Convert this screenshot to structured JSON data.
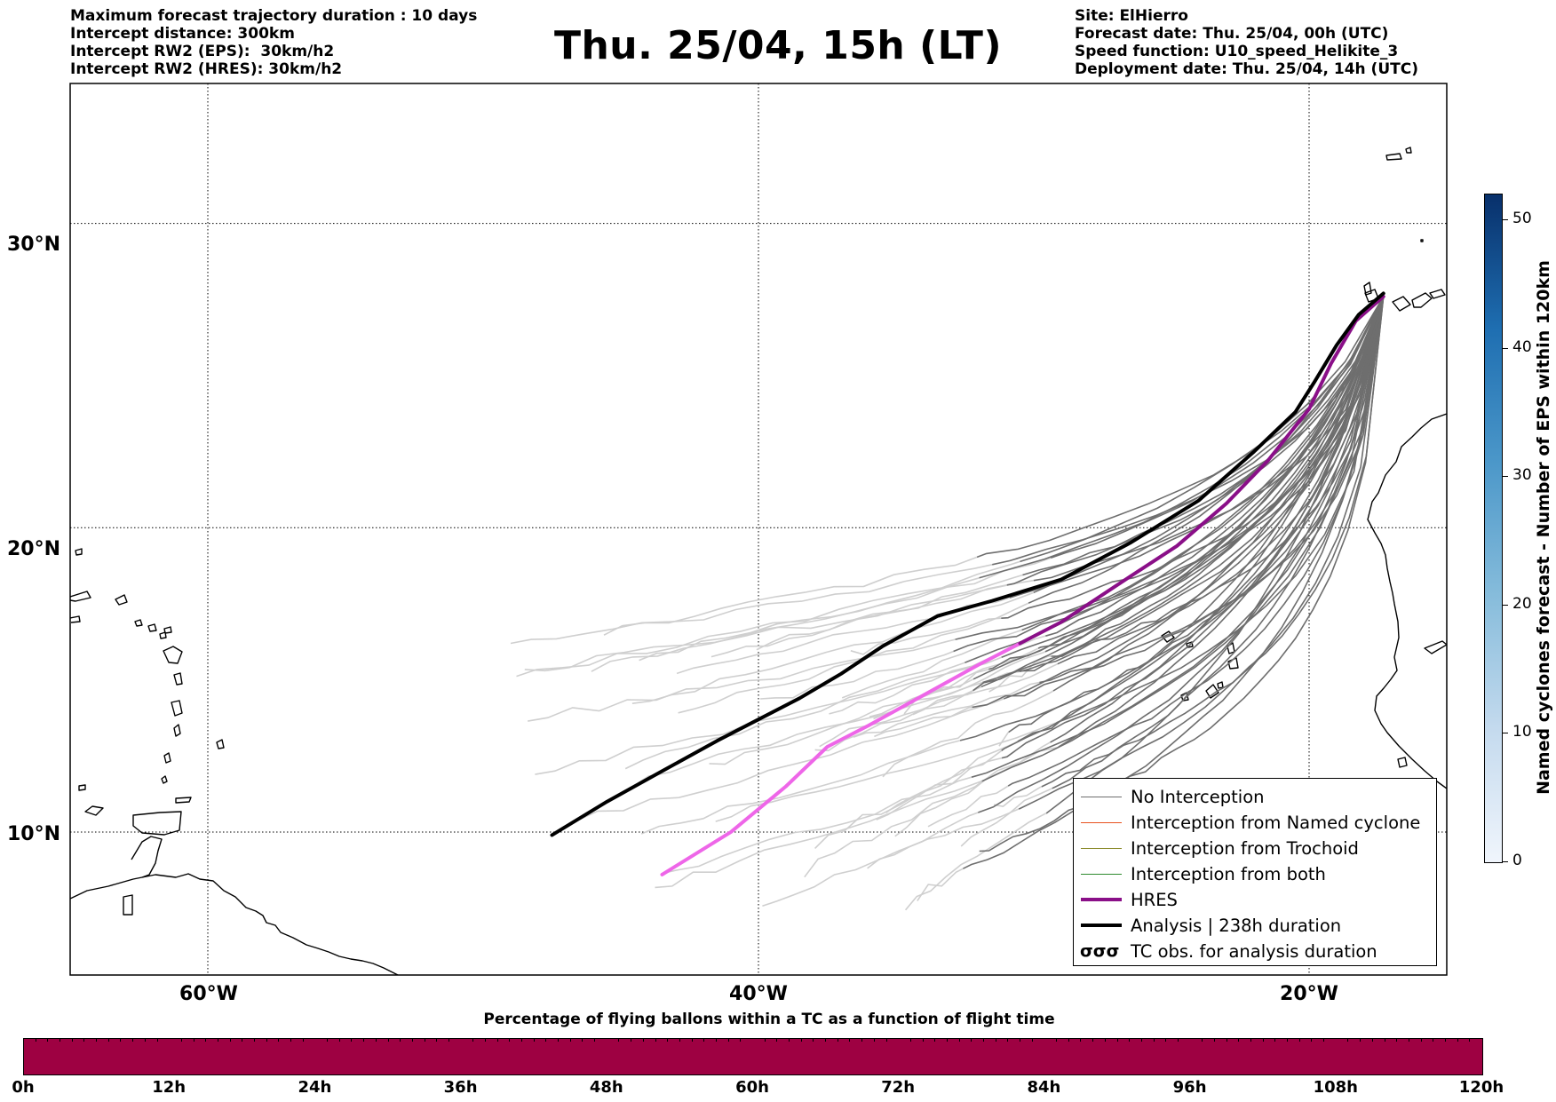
{
  "header": {
    "left_lines": [
      "Maximum forecast trajectory duration : 10 days",
      "Intercept distance: 300km",
      "Intercept RW2 (EPS):  30km/h2",
      "Intercept RW2 (HRES): 30km/h2"
    ],
    "title": "Thu. 25/04, 15h (LT)",
    "right_lines": [
      "Site: ElHierro",
      "Forecast date: Thu. 25/04, 00h (UTC)",
      "Speed function: U10_speed_Helikite_3",
      "Deployment date: Thu. 25/04, 14h (UTC)"
    ]
  },
  "map": {
    "lon_range": [
      -65,
      -15
    ],
    "lat_range": [
      5.3,
      34.6
    ],
    "lat_labels": [
      "30°N",
      "20°N",
      "10°N"
    ],
    "lat_values": [
      30,
      20,
      10
    ],
    "lon_labels": [
      "60°W",
      "40°W",
      "20°W"
    ],
    "lon_values": [
      -60,
      -40,
      -20
    ],
    "colors": {
      "eps_far": "#cfcfcf",
      "eps_near": "#6e6e6e",
      "hres_near": "#8a0f88",
      "hres_far": "#ee66e8",
      "analysis": "#000000",
      "coast": "#000000"
    }
  },
  "trajectories": {
    "analysis": [
      [
        -17.3,
        27.7
      ],
      [
        -18.2,
        27.0
      ],
      [
        -19.0,
        26.0
      ],
      [
        -19.8,
        24.8
      ],
      [
        -20.5,
        23.8
      ],
      [
        -22.0,
        22.5
      ],
      [
        -24.0,
        20.9
      ],
      [
        -26.5,
        19.5
      ],
      [
        -29.0,
        18.3
      ],
      [
        -31.5,
        17.6
      ],
      [
        -33.5,
        17.1
      ],
      [
        -35.5,
        16.1
      ],
      [
        -37.0,
        15.2
      ],
      [
        -38.5,
        14.4
      ],
      [
        -40.0,
        13.7
      ],
      [
        -41.5,
        13.0
      ],
      [
        -43.5,
        12.0
      ],
      [
        -45.5,
        11.0
      ],
      [
        -47.5,
        9.9
      ]
    ],
    "hres": [
      [
        -17.3,
        27.6
      ],
      [
        -18.3,
        26.8
      ],
      [
        -19.2,
        25.4
      ],
      [
        -20.0,
        23.9
      ],
      [
        -21.5,
        22.2
      ],
      [
        -23.0,
        20.8
      ],
      [
        -24.8,
        19.4
      ],
      [
        -27.0,
        18.1
      ],
      [
        -29.0,
        16.9
      ],
      [
        -30.5,
        16.2
      ],
      [
        -32.0,
        15.5
      ],
      [
        -34.0,
        14.5
      ],
      [
        -36.0,
        13.5
      ],
      [
        -37.5,
        12.8
      ],
      [
        -39.0,
        11.5
      ],
      [
        -41.0,
        10.0
      ],
      [
        -43.5,
        8.6
      ]
    ]
  },
  "legend": {
    "items": [
      {
        "label": "No Interception",
        "color": "#6e6e6e",
        "width": 1.3
      },
      {
        "label": "Interception from Named cyclone",
        "color": "#e8521f",
        "width": 1.3
      },
      {
        "label": "Interception from Trochoid",
        "color": "#8a8a2a",
        "width": 1.3
      },
      {
        "label": "Interception from both",
        "color": "#2e8b2e",
        "width": 1.3
      },
      {
        "label": "HRES",
        "color": "#8a0f88",
        "width": 4
      },
      {
        "label": "Analysis | 238h duration",
        "color": "#000000",
        "width": 4
      }
    ],
    "tc_symbol": "σσσ",
    "tc_label": "TC obs. for analysis duration"
  },
  "colorbar_right": {
    "title": "Named cyclones forecast - Number of EPS within 120km",
    "ticks": [
      "0",
      "10",
      "20",
      "30",
      "40",
      "50"
    ],
    "max": 52,
    "colormap": [
      "#f0f5fc",
      "#08306b"
    ]
  },
  "colorbar_bottom": {
    "title": "Percentage of flying ballons within a TC as a function of flight time",
    "ticks": [
      "0h",
      "12h",
      "24h",
      "36h",
      "48h",
      "60h",
      "72h",
      "84h",
      "96h",
      "108h",
      "120h"
    ],
    "color": "#9e0142"
  }
}
